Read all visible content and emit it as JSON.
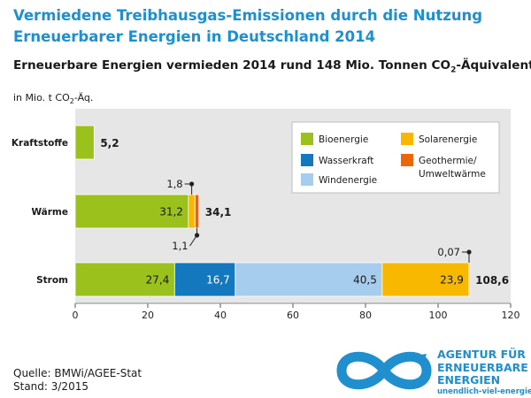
{
  "header": {
    "title_line1": "Vermiedene Treibhausgas-Emissionen durch die Nutzung",
    "title_line2": "Erneuerbarer Energien in Deutschland 2014",
    "subtitle_main": "Erneuerbare Energien vermieden 2014 rund 148 Mio. Tonnen CO",
    "subtitle_sub": "2",
    "subtitle_tail": "-Äquivalente."
  },
  "unit": {
    "main": "in Mio. t CO",
    "sub": "2",
    "tail": "-Äq."
  },
  "footer": {
    "source": "Quelle: BMWi/AGEE-Stat",
    "stand": "Stand: 3/2015"
  },
  "agency": {
    "line1": "AGENTUR FÜR",
    "line2": "ERNEUERBARE",
    "line3": "ENERGIEN",
    "url": "unendlich-viel-energie.de"
  },
  "chart_data": {
    "type": "bar",
    "orientation": "horizontal",
    "stacked": true,
    "categories": [
      "Kraftstoffe",
      "Wärme",
      "Strom"
    ],
    "xlim": [
      0,
      120
    ],
    "xticks": [
      "0",
      "20",
      "40",
      "60",
      "80",
      "100",
      "120"
    ],
    "grid": false,
    "legend_position": "top-right",
    "series": [
      {
        "name": "Bioenergie",
        "color": "#9bc11c",
        "values": [
          5.2,
          31.2,
          27.4
        ],
        "labels": [
          "",
          "31,2",
          "27,4"
        ]
      },
      {
        "name": "Wasserkraft",
        "color": "#1478be",
        "values": [
          0,
          0,
          16.7
        ],
        "labels": [
          "",
          "",
          "16,7"
        ]
      },
      {
        "name": "Windenergie",
        "color": "#a7cdee",
        "values": [
          0,
          0,
          40.5
        ],
        "labels": [
          "",
          "",
          "40,5"
        ]
      },
      {
        "name": "Solarenergie",
        "color": "#f9b800",
        "values": [
          0,
          1.8,
          23.9
        ],
        "labels": [
          "",
          "",
          "23,9"
        ]
      },
      {
        "name": "Geothermie/ Umweltwärme",
        "color": "#ec6608",
        "values": [
          0,
          1.1,
          0.07
        ],
        "labels": [
          "",
          "",
          ""
        ]
      }
    ],
    "totals": [
      "5,2",
      "34,1",
      "108,6"
    ],
    "callouts": [
      {
        "text": "1,8",
        "category": "Wärme",
        "series": "Solarenergie",
        "position": "above"
      },
      {
        "text": "1,1",
        "category": "Wärme",
        "series": "Geothermie/ Umweltwärme",
        "position": "below"
      },
      {
        "text": "0,07",
        "category": "Strom",
        "series": "Geothermie/ Umweltwärme",
        "position": "above"
      }
    ]
  }
}
